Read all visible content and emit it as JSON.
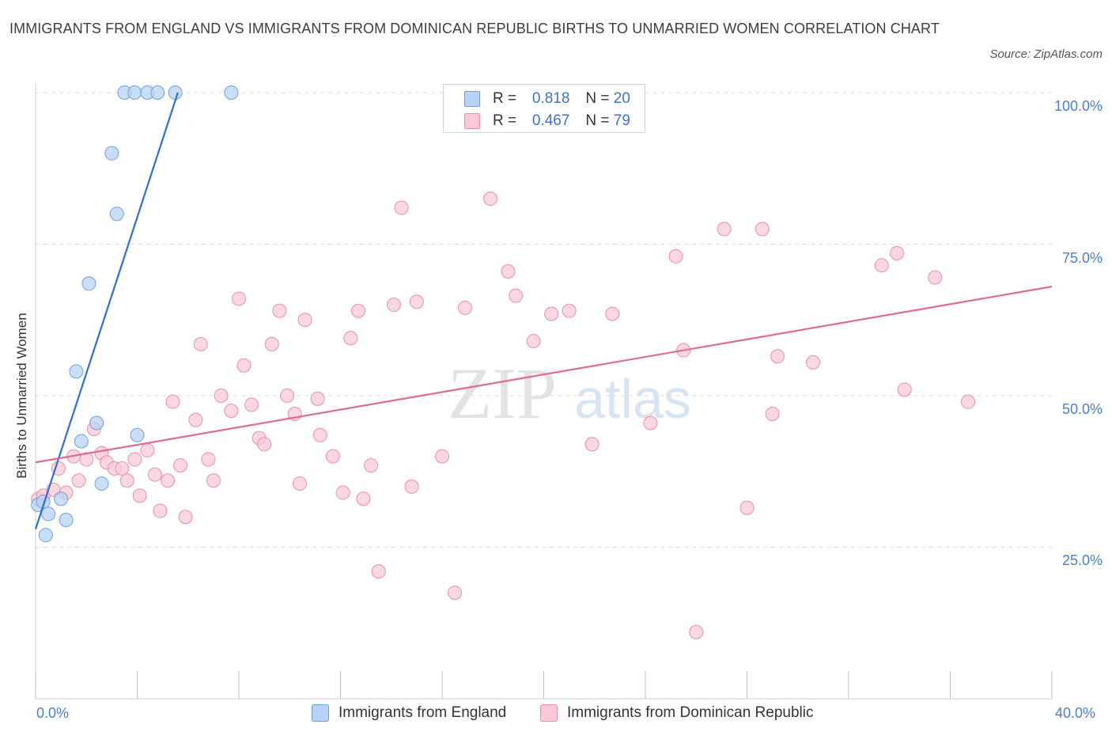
{
  "title": "IMMIGRANTS FROM ENGLAND VS IMMIGRANTS FROM DOMINICAN REPUBLIC BIRTHS TO UNMARRIED WOMEN CORRELATION CHART",
  "source": "Source: ZipAtlas.com",
  "watermark": {
    "zip": "ZIP",
    "atlas": "atlas"
  },
  "legend": {
    "r_label": "R =",
    "n_label": "N =",
    "series": [
      {
        "r": "0.818",
        "n": "20"
      },
      {
        "r": "0.467",
        "n": "79"
      }
    ]
  },
  "colors": {
    "england_fill": "#b8d3f5",
    "england_stroke": "#6fa0dd",
    "england_line": "#2f6fce",
    "dominican_fill": "#f9c9d7",
    "dominican_stroke": "#e98fab",
    "dominican_line": "#e06a92",
    "grid": "#dcdcdc",
    "axis_text": "#4a7fcf"
  },
  "chart_data": {
    "type": "scatter",
    "xlabel": "",
    "ylabel": "Births to Unmarried Women",
    "xlim": [
      0,
      40
    ],
    "ylim": [
      0,
      100
    ],
    "x_ticks": [
      "0.0%",
      "40.0%"
    ],
    "y_ticks": [
      "25.0%",
      "50.0%",
      "75.0%",
      "100.0%"
    ],
    "grid": true,
    "legend_position": "top-center",
    "series": [
      {
        "name": "Immigrants from England",
        "r": 0.818,
        "n": 20,
        "trend": [
          [
            0.0,
            28.0
          ],
          [
            5.6,
            100.0
          ]
        ],
        "points": [
          [
            0.1,
            32.0
          ],
          [
            0.3,
            32.5
          ],
          [
            0.5,
            30.5
          ],
          [
            0.4,
            27.0
          ],
          [
            1.0,
            33.0
          ],
          [
            1.2,
            29.5
          ],
          [
            1.6,
            54.0
          ],
          [
            1.8,
            42.5
          ],
          [
            2.1,
            68.5
          ],
          [
            2.4,
            45.5
          ],
          [
            2.6,
            35.5
          ],
          [
            3.0,
            90.0
          ],
          [
            3.2,
            80.0
          ],
          [
            4.0,
            43.5
          ],
          [
            3.5,
            100.0
          ],
          [
            3.9,
            100.0
          ],
          [
            4.4,
            100.0
          ],
          [
            4.8,
            100.0
          ],
          [
            5.5,
            100.0
          ],
          [
            7.7,
            100.0
          ]
        ]
      },
      {
        "name": "Immigrants from Dominican Republic",
        "r": 0.467,
        "n": 79,
        "trend": [
          [
            0.0,
            39.0
          ],
          [
            40.0,
            68.0
          ]
        ],
        "points": [
          [
            0.1,
            33.0
          ],
          [
            0.3,
            33.5
          ],
          [
            0.7,
            34.5
          ],
          [
            0.9,
            38.0
          ],
          [
            1.2,
            34.0
          ],
          [
            1.5,
            40.0
          ],
          [
            1.7,
            36.0
          ],
          [
            2.0,
            39.5
          ],
          [
            2.3,
            44.5
          ],
          [
            2.6,
            40.5
          ],
          [
            2.8,
            39.0
          ],
          [
            3.1,
            38.0
          ],
          [
            3.4,
            38.0
          ],
          [
            3.6,
            36.0
          ],
          [
            3.9,
            39.5
          ],
          [
            4.1,
            33.5
          ],
          [
            4.4,
            41.0
          ],
          [
            4.7,
            37.0
          ],
          [
            4.9,
            31.0
          ],
          [
            5.2,
            36.0
          ],
          [
            5.4,
            49.0
          ],
          [
            5.7,
            38.5
          ],
          [
            5.9,
            30.0
          ],
          [
            6.3,
            46.0
          ],
          [
            6.5,
            58.5
          ],
          [
            6.8,
            39.5
          ],
          [
            7.0,
            36.0
          ],
          [
            7.3,
            50.0
          ],
          [
            7.7,
            47.5
          ],
          [
            8.0,
            66.0
          ],
          [
            8.2,
            55.0
          ],
          [
            8.5,
            48.5
          ],
          [
            8.8,
            43.0
          ],
          [
            9.0,
            42.0
          ],
          [
            9.3,
            58.5
          ],
          [
            9.6,
            64.0
          ],
          [
            9.9,
            50.0
          ],
          [
            10.2,
            47.0
          ],
          [
            10.4,
            35.5
          ],
          [
            10.6,
            62.5
          ],
          [
            11.1,
            49.5
          ],
          [
            11.2,
            43.5
          ],
          [
            11.7,
            40.0
          ],
          [
            12.1,
            34.0
          ],
          [
            12.4,
            59.5
          ],
          [
            12.7,
            64.0
          ],
          [
            12.9,
            33.0
          ],
          [
            13.2,
            38.5
          ],
          [
            13.5,
            21.0
          ],
          [
            14.1,
            65.0
          ],
          [
            14.4,
            81.0
          ],
          [
            14.8,
            35.0
          ],
          [
            15.0,
            65.5
          ],
          [
            16.0,
            40.0
          ],
          [
            16.5,
            17.5
          ],
          [
            16.9,
            64.5
          ],
          [
            17.9,
            82.5
          ],
          [
            18.6,
            70.5
          ],
          [
            18.9,
            66.5
          ],
          [
            19.6,
            59.0
          ],
          [
            20.3,
            63.5
          ],
          [
            21.0,
            64.0
          ],
          [
            21.9,
            42.0
          ],
          [
            22.7,
            63.5
          ],
          [
            24.2,
            45.5
          ],
          [
            25.2,
            73.0
          ],
          [
            25.5,
            57.5
          ],
          [
            26.0,
            11.0
          ],
          [
            27.1,
            77.5
          ],
          [
            28.0,
            31.5
          ],
          [
            28.6,
            77.5
          ],
          [
            29.0,
            47.0
          ],
          [
            29.2,
            56.5
          ],
          [
            30.6,
            55.5
          ],
          [
            33.3,
            71.5
          ],
          [
            33.9,
            73.5
          ],
          [
            34.2,
            51.0
          ],
          [
            35.4,
            69.5
          ],
          [
            36.7,
            49.0
          ]
        ]
      }
    ]
  }
}
